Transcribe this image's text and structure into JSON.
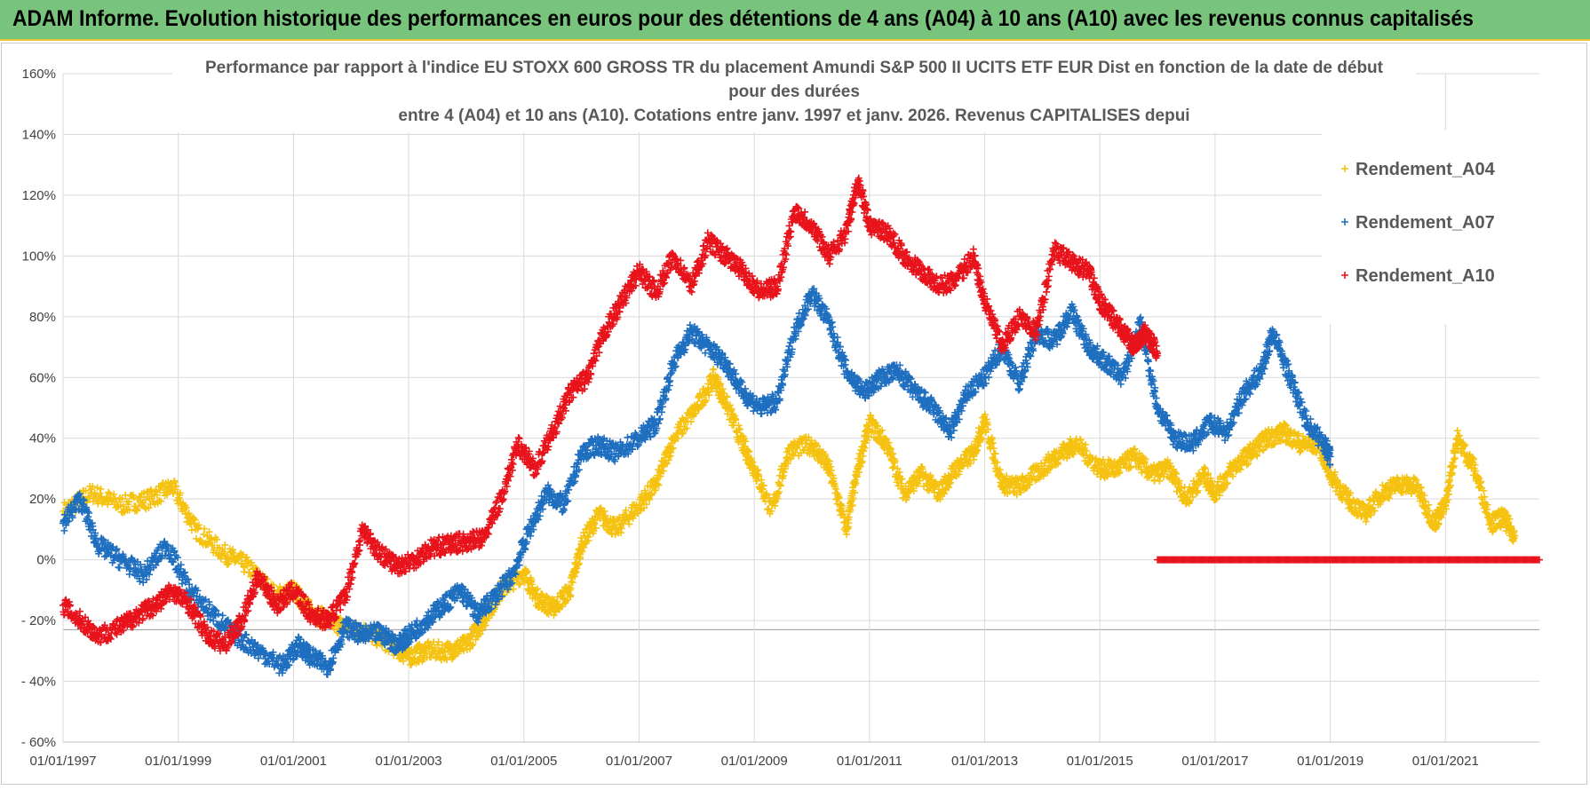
{
  "banner": {
    "title": "ADAM Informe. Evolution historique des performances en euros pour des détentions de 4 ans (A04) à 10 ans (A10) avec les revenus connus capitalisés"
  },
  "colors": {
    "banner_bg": "#78c47c",
    "banner_border": "#e8c23a",
    "A04": "#f5c211",
    "A07": "#1f6fc0",
    "A10": "#e8131b",
    "grid": "#d9d9d9"
  },
  "chart_data": {
    "type": "scatter",
    "title_lines": [
      "Performance par rapport à l'indice EU STOXX 600 GROSS TR  du placement Amundi S&P 500 II UCITS ETF EUR Dist en fonction de la date de début",
      "pour des durées",
      "entre 4 (A04) et 10 ans (A10). Cotations entre janv. 1997 et janv. 2026. Revenus CAPITALISES depui"
    ],
    "ylim": [
      -60,
      160
    ],
    "yticks": [
      160,
      140,
      120,
      100,
      80,
      60,
      40,
      20,
      0,
      -20,
      -40,
      -60
    ],
    "ytick_labels": [
      "160%",
      "140%",
      "120%",
      "100%",
      "80%",
      "60%",
      "40%",
      "20%",
      "0%",
      "- 20%",
      "- 40%",
      "- 60%"
    ],
    "xlim": [
      1997.0,
      2022.63
    ],
    "xticks": [
      1997,
      1999,
      2001,
      2003,
      2005,
      2007,
      2009,
      2011,
      2013,
      2015,
      2017,
      2019,
      2021
    ],
    "xtick_labels": [
      "01/01/1997",
      "01/01/1999",
      "01/01/2001",
      "01/01/2003",
      "01/01/2005",
      "01/01/2007",
      "01/01/2009",
      "01/01/2011",
      "01/01/2013",
      "01/01/2015",
      "01/01/2017",
      "01/01/2019",
      "01/01/2021"
    ],
    "marker": "+",
    "series": [
      {
        "name": "Rendement_A04",
        "key": "A04",
        "x": [
          1997.0,
          1997.5,
          1998.0,
          1998.5,
          1998.9,
          1999.3,
          1999.8,
          2000.2,
          2000.7,
          2001.0,
          2001.3,
          2001.6,
          2001.9,
          2002.3,
          2002.7,
          2003.0,
          2003.3,
          2003.7,
          2004.0,
          2004.3,
          2004.6,
          2005.0,
          2005.2,
          2005.5,
          2005.8,
          2006.0,
          2006.3,
          2006.6,
          2007.0,
          2007.3,
          2007.6,
          2008.0,
          2008.3,
          2008.5,
          2008.8,
          2009.0,
          2009.3,
          2009.6,
          2010.0,
          2010.3,
          2010.6,
          2010.8,
          2011.0,
          2011.3,
          2011.6,
          2011.9,
          2012.2,
          2012.5,
          2012.8,
          2013.0,
          2013.3,
          2013.6,
          2014.0,
          2014.3,
          2014.6,
          2015.0,
          2015.3,
          2015.6,
          2015.9,
          2016.2,
          2016.5,
          2016.8,
          2017.0,
          2017.3,
          2017.6,
          2017.9,
          2018.2,
          2018.5,
          2018.8,
          2019.0,
          2019.3,
          2019.6,
          2019.9,
          2020.2,
          2020.5,
          2020.8,
          2021.0,
          2021.2,
          2021.5,
          2021.8,
          2022.0,
          2022.2
        ],
        "y": [
          16,
          22,
          18,
          20,
          24,
          10,
          2,
          -2,
          -12,
          -10,
          -17,
          -20,
          -22,
          -24,
          -28,
          -32,
          -30,
          -30,
          -28,
          -20,
          -10,
          -4,
          -12,
          -16,
          -10,
          5,
          15,
          10,
          18,
          25,
          40,
          50,
          60,
          52,
          38,
          30,
          16,
          36,
          38,
          30,
          10,
          30,
          45,
          38,
          22,
          28,
          22,
          30,
          35,
          46,
          25,
          24,
          30,
          35,
          38,
          30,
          30,
          34,
          28,
          30,
          20,
          28,
          22,
          30,
          35,
          40,
          42,
          38,
          38,
          28,
          20,
          15,
          22,
          25,
          24,
          12,
          18,
          40,
          30,
          12,
          14,
          8
        ]
      },
      {
        "name": "Rendement_A07",
        "key": "A07",
        "x": [
          1997.0,
          1997.3,
          1997.6,
          1998.0,
          1998.4,
          1998.8,
          1999.2,
          1999.6,
          2000.0,
          2000.4,
          2000.8,
          2001.1,
          2001.3,
          2001.6,
          2001.9,
          2002.2,
          2002.5,
          2002.8,
          2003.0,
          2003.3,
          2003.6,
          2003.9,
          2004.2,
          2004.5,
          2004.8,
          2005.1,
          2005.4,
          2005.7,
          2006.0,
          2006.3,
          2006.6,
          2007.0,
          2007.3,
          2007.6,
          2007.9,
          2008.2,
          2008.5,
          2008.8,
          2009.1,
          2009.4,
          2009.7,
          2010.0,
          2010.3,
          2010.6,
          2010.9,
          2011.2,
          2011.5,
          2011.8,
          2012.1,
          2012.4,
          2012.7,
          2013.0,
          2013.3,
          2013.6,
          2013.9,
          2014.2,
          2014.5,
          2014.8,
          2015.1,
          2015.4,
          2015.7,
          2016.0,
          2016.3,
          2016.6,
          2016.9,
          2017.2,
          2017.5,
          2017.8,
          2018.0,
          2018.3,
          2018.6,
          2018.9,
          2019.0
        ],
        "y": [
          12,
          20,
          5,
          0,
          -5,
          5,
          -10,
          -18,
          -25,
          -30,
          -35,
          -28,
          -32,
          -35,
          -22,
          -25,
          -24,
          -28,
          -25,
          -20,
          -15,
          -10,
          -18,
          -12,
          -5,
          10,
          22,
          18,
          35,
          38,
          35,
          40,
          45,
          65,
          75,
          70,
          65,
          55,
          50,
          52,
          75,
          88,
          78,
          62,
          55,
          60,
          62,
          55,
          50,
          42,
          55,
          60,
          70,
          58,
          75,
          72,
          82,
          70,
          65,
          60,
          78,
          50,
          40,
          38,
          45,
          42,
          55,
          62,
          75,
          60,
          45,
          38,
          34
        ]
      },
      {
        "name": "Rendement_A10",
        "key": "A10",
        "x": [
          1997.0,
          1997.3,
          1997.6,
          1998.0,
          1998.3,
          1998.6,
          1998.9,
          1999.2,
          1999.5,
          1999.8,
          2000.1,
          2000.4,
          2000.7,
          2001.0,
          2001.3,
          2001.6,
          2001.9,
          2002.2,
          2002.5,
          2002.8,
          2003.1,
          2003.4,
          2003.7,
          2004.0,
          2004.3,
          2004.6,
          2004.9,
          2005.2,
          2005.5,
          2005.8,
          2006.1,
          2006.4,
          2006.7,
          2007.0,
          2007.3,
          2007.6,
          2007.9,
          2008.2,
          2008.5,
          2008.8,
          2009.1,
          2009.4,
          2009.7,
          2010.0,
          2010.3,
          2010.6,
          2010.8,
          2011.0,
          2011.3,
          2011.6,
          2011.9,
          2012.2,
          2012.5,
          2012.8,
          2013.0,
          2013.3,
          2013.6,
          2013.9,
          2014.2,
          2014.5,
          2014.8,
          2015.0,
          2015.2,
          2015.4,
          2015.6,
          2015.8,
          2016.0
        ],
        "y": [
          -15,
          -20,
          -25,
          -22,
          -18,
          -15,
          -10,
          -15,
          -25,
          -28,
          -20,
          -5,
          -15,
          -10,
          -18,
          -20,
          -12,
          10,
          2,
          -2,
          0,
          4,
          5,
          6,
          7,
          20,
          38,
          30,
          42,
          55,
          60,
          75,
          85,
          95,
          88,
          100,
          90,
          105,
          100,
          95,
          88,
          90,
          115,
          110,
          100,
          108,
          125,
          110,
          108,
          100,
          95,
          90,
          92,
          100,
          85,
          70,
          80,
          75,
          102,
          98,
          95,
          85,
          80,
          75,
          70,
          75,
          68
        ]
      },
      {
        "name": "zero-line",
        "key": "A10",
        "x": [
          2016.0,
          2022.63
        ],
        "y": [
          0,
          0
        ]
      }
    ],
    "legend": [
      "Rendement_A04",
      "Rendement_A07",
      "Rendement_A10"
    ],
    "legend_position": "top-right"
  }
}
